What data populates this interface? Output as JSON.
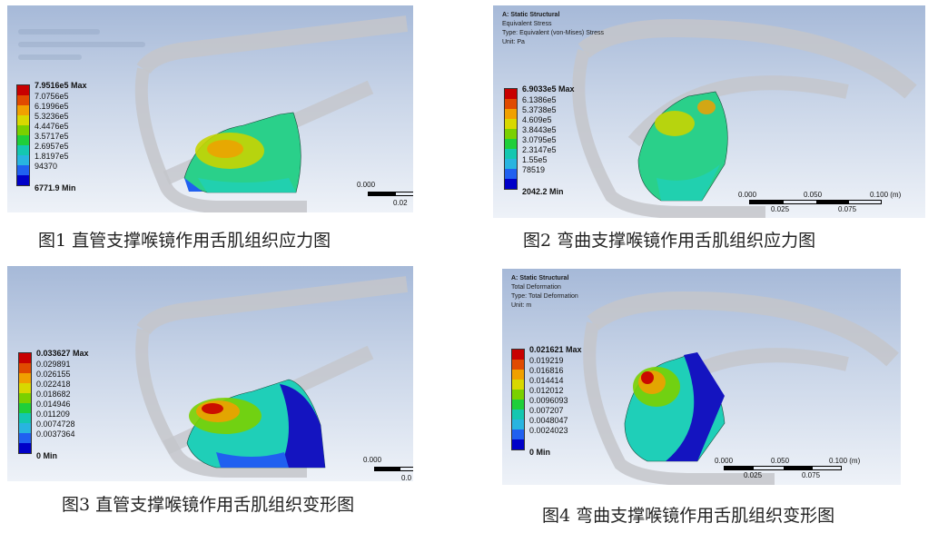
{
  "colors": {
    "legend_scale": [
      "#c80000",
      "#e04a00",
      "#f0a000",
      "#d8d800",
      "#7ad000",
      "#1fcf3a",
      "#14c7b0",
      "#28b4e0",
      "#2060f0",
      "#0000c8"
    ]
  },
  "panels": [
    {
      "caption": "图1  直管支撑喉镜作用舌肌组织应力图",
      "header": null,
      "legend": [
        "7.9516e5 Max",
        "7.0756e5",
        "6.1996e5",
        "5.3236e5",
        "4.4476e5",
        "3.5717e5",
        "2.6957e5",
        "1.8197e5",
        "94370",
        "6771.9 Min"
      ],
      "scale": {
        "labels": [
          "0.000",
          "0.02"
        ]
      }
    },
    {
      "caption": "图2 弯曲支撑喉镜作用舌肌组织应力图",
      "header": {
        "title": "A: Static Structural",
        "line1": "Equivalent Stress",
        "line2": "Type: Equivalent (von-Mises) Stress",
        "line3": "Unit: Pa"
      },
      "legend": [
        "6.9033e5 Max",
        "6.1386e5",
        "5.3738e5",
        "4.609e5",
        "3.8443e5",
        "3.0795e5",
        "2.3147e5",
        "1.55e5",
        "78519",
        "2042.2 Min"
      ],
      "scale": {
        "labels_top": [
          "0.000",
          "0.050",
          "0.100 (m)"
        ],
        "labels_bottom": [
          "0.025",
          "0.075"
        ]
      }
    },
    {
      "caption": "图3 直管支撑喉镜作用舌肌组织变形图",
      "header": null,
      "legend": [
        "0.033627 Max",
        "0.029891",
        "0.026155",
        "0.022418",
        "0.018682",
        "0.014946",
        "0.011209",
        "0.0074728",
        "0.0037364",
        "0 Min"
      ],
      "scale": {
        "labels": [
          "0.000",
          "0.0"
        ]
      }
    },
    {
      "caption": "图4 弯曲支撑喉镜作用舌肌组织变形图",
      "header": {
        "title": "A: Static Structural",
        "line1": "Total Deformation",
        "line2": "Type: Total Deformation",
        "line3": "Unit: m"
      },
      "legend": [
        "0.021621 Max",
        "0.019219",
        "0.016816",
        "0.014414",
        "0.012012",
        "0.0096093",
        "0.007207",
        "0.0048047",
        "0.0024023",
        "0 Min"
      ],
      "scale": {
        "labels_top": [
          "0.000",
          "0.050",
          "0.100 (m)"
        ],
        "labels_bottom": [
          "0.025",
          "0.075"
        ]
      }
    }
  ]
}
